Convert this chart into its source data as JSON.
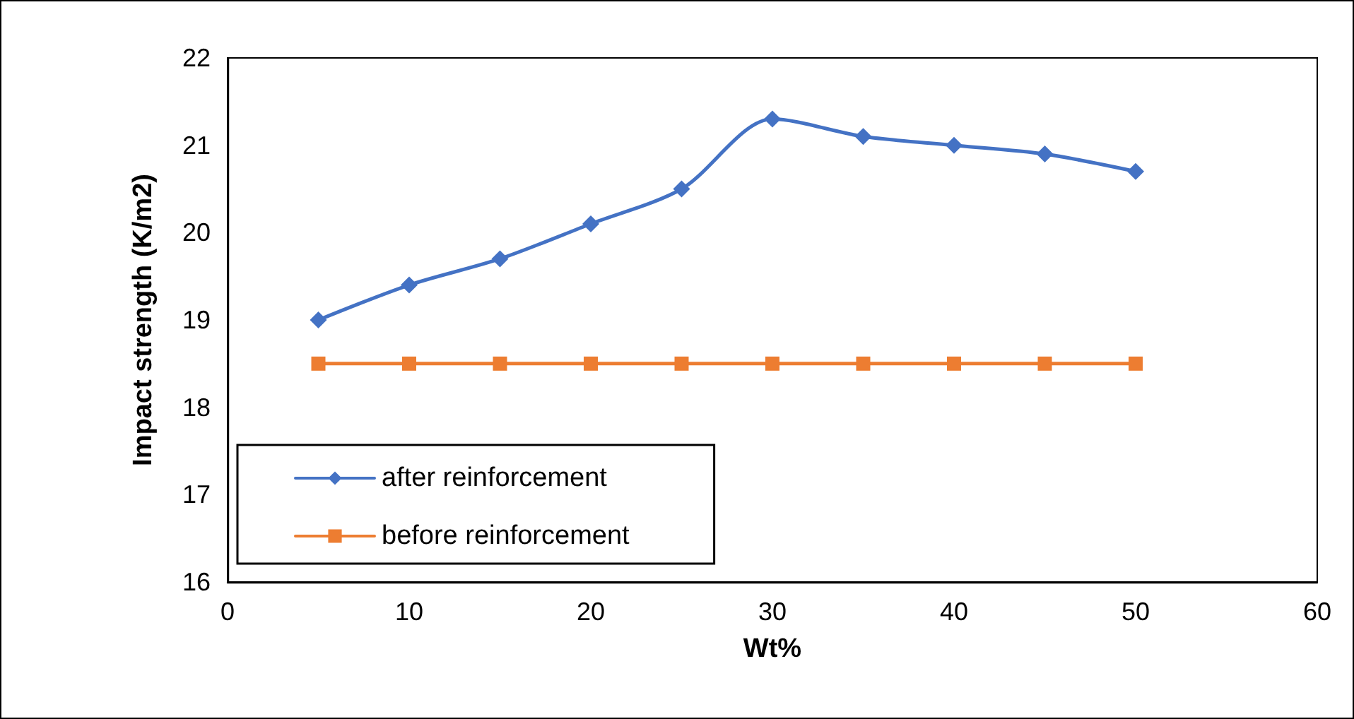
{
  "chart_data": {
    "type": "line",
    "xlabel": "Wt%",
    "ylabel": "Impact strength (K/m2)",
    "x": [
      5,
      10,
      15,
      20,
      25,
      30,
      35,
      40,
      45,
      50
    ],
    "series": [
      {
        "name": "after reinforcement",
        "color": "#4472c4",
        "marker": "diamond",
        "values": [
          19.0,
          19.4,
          19.7,
          20.1,
          20.5,
          21.3,
          21.1,
          21.0,
          20.9,
          20.7
        ]
      },
      {
        "name": "before reinforcement",
        "color": "#ed7d31",
        "marker": "square",
        "values": [
          18.5,
          18.5,
          18.5,
          18.5,
          18.5,
          18.5,
          18.5,
          18.5,
          18.5,
          18.5
        ]
      }
    ],
    "xlim": [
      0,
      60
    ],
    "xticks": [
      0,
      10,
      20,
      30,
      40,
      50,
      60
    ],
    "ylim": [
      16,
      22
    ],
    "yticks": [
      16,
      17,
      18,
      19,
      20,
      21,
      22
    ],
    "grid": false,
    "legend": "bottom left",
    "line_style": "solid"
  }
}
